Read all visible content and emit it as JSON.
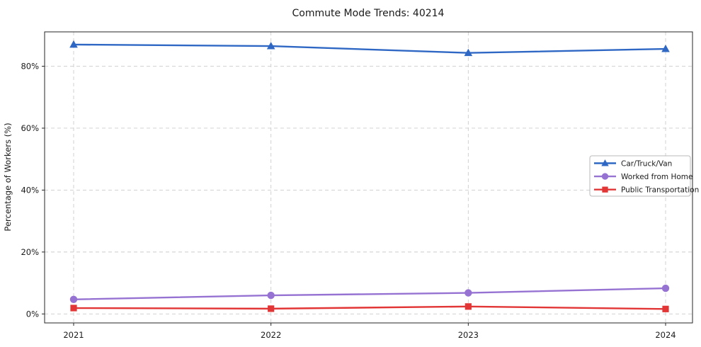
{
  "chart_data": {
    "type": "line",
    "title": "Commute Mode Trends: 40214",
    "xlabel": "",
    "ylabel": "Percentage of Workers (%)",
    "x": [
      2021,
      2022,
      2023,
      2024
    ],
    "xtick_labels": [
      "2021",
      "2022",
      "2023",
      "2024"
    ],
    "yticks": [
      0,
      20,
      40,
      60,
      80
    ],
    "ytick_labels": [
      "0%",
      "20%",
      "40%",
      "60%",
      "80%"
    ],
    "ylim": [
      -2.9,
      91.1
    ],
    "grid": true,
    "grid_style": "dashed",
    "legend_location": "center-right",
    "series": [
      {
        "name": "Car/Truck/Van",
        "marker": "triangle",
        "color": "#2f68c4",
        "values": [
          87.0,
          86.5,
          84.3,
          85.6
        ]
      },
      {
        "name": "Worked from Home",
        "marker": "circle",
        "color": "#9673d2",
        "values": [
          4.7,
          6.0,
          6.8,
          8.3
        ]
      },
      {
        "name": "Public Transportation",
        "marker": "square",
        "color": "#e23535",
        "values": [
          1.9,
          1.7,
          2.4,
          1.6
        ]
      }
    ],
    "style": {
      "background": "#ffffff",
      "grid_color": "#cccccc",
      "axis_color": "#262626",
      "text_color": "#1a1a1a",
      "legend_border_color": "#b9b9b9",
      "legend_background": "#ffffff"
    }
  }
}
